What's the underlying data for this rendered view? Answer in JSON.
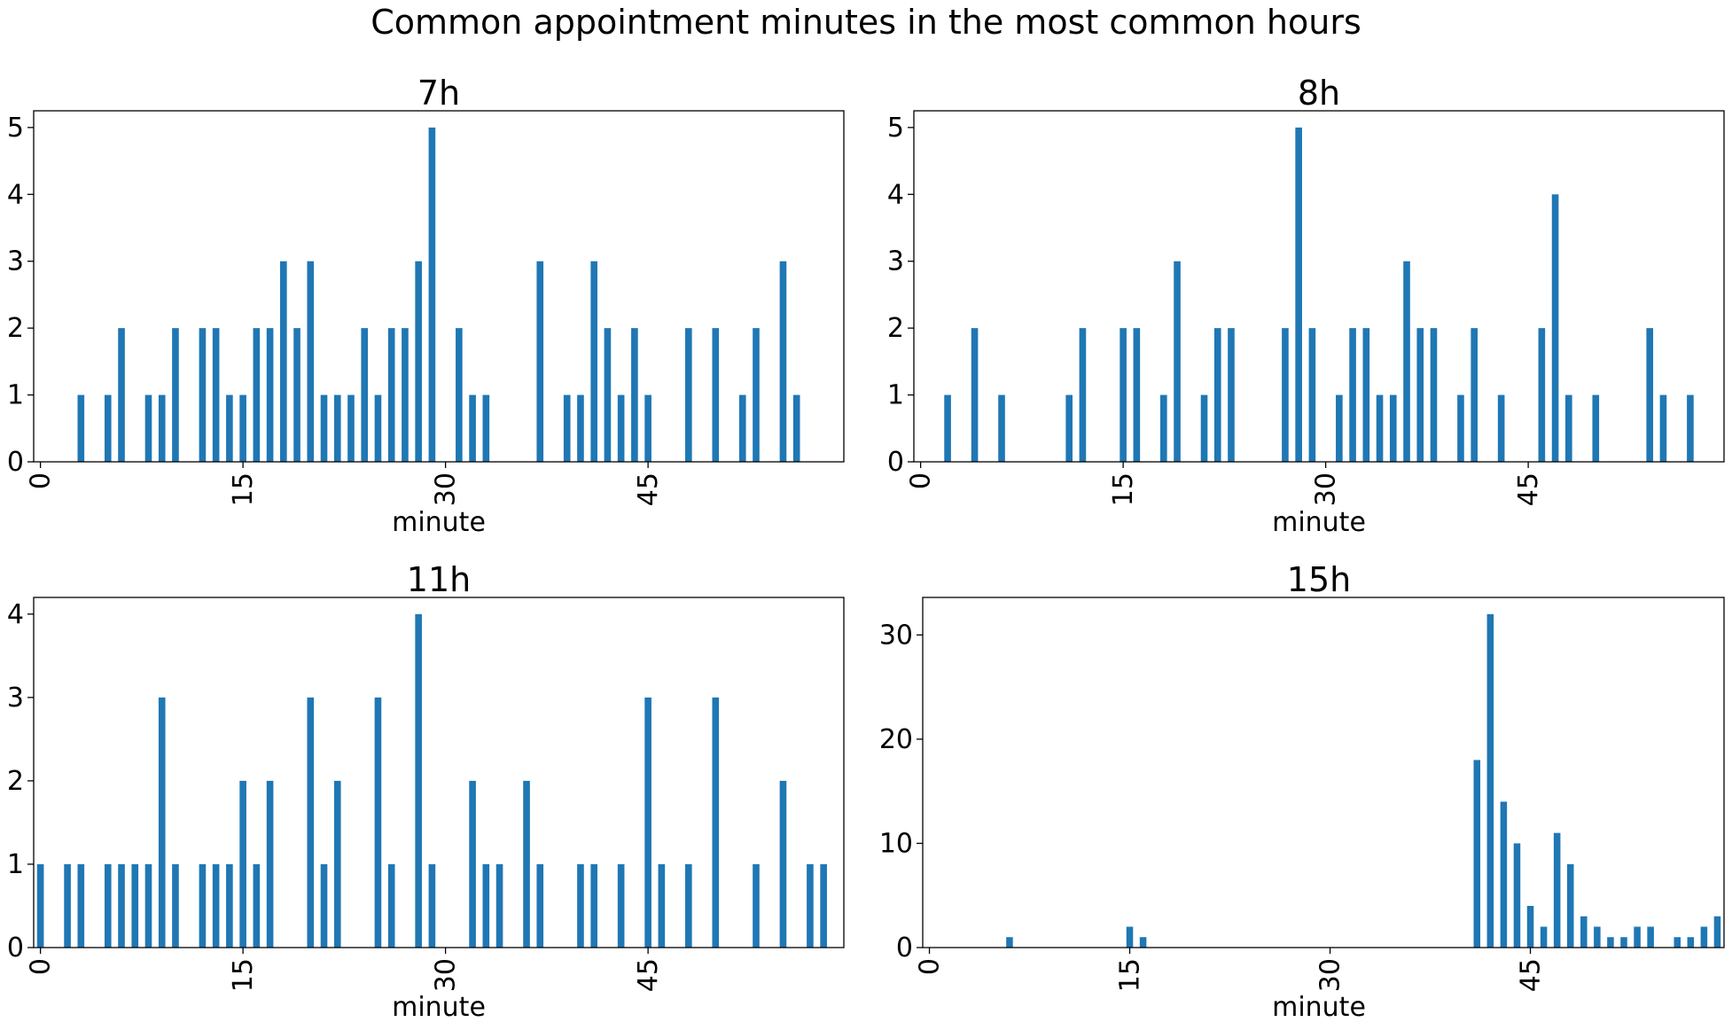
{
  "figure": {
    "title": "Common appointment minutes in the most common hours"
  },
  "colors": {
    "bar": "#1f77b4",
    "axis": "#000000",
    "background": "#ffffff"
  },
  "chart_data": [
    {
      "type": "bar",
      "title": "7h",
      "xlabel": "minute",
      "ylabel": "",
      "x_ticks": [
        0,
        15,
        30,
        45
      ],
      "y_ticks": [
        0,
        1,
        2,
        3,
        4,
        5
      ],
      "ylim": [
        0,
        5.25
      ],
      "xlim": [
        -0.5,
        59.5
      ],
      "grid": false,
      "minutes": [
        3,
        5,
        6,
        8,
        9,
        10,
        12,
        13,
        14,
        15,
        16,
        17,
        18,
        19,
        20,
        21,
        22,
        23,
        24,
        25,
        26,
        27,
        28,
        29,
        31,
        32,
        33,
        37,
        39,
        40,
        41,
        42,
        43,
        44,
        45,
        48,
        50,
        52,
        53,
        55,
        56
      ],
      "values": [
        1,
        1,
        2,
        1,
        1,
        2,
        2,
        2,
        1,
        1,
        2,
        2,
        3,
        2,
        3,
        1,
        1,
        1,
        2,
        1,
        2,
        2,
        3,
        5,
        2,
        1,
        1,
        3,
        1,
        1,
        3,
        2,
        1,
        2,
        1,
        2,
        2,
        1,
        2,
        3,
        1
      ]
    },
    {
      "type": "bar",
      "title": "8h",
      "xlabel": "minute",
      "ylabel": "",
      "x_ticks": [
        0,
        15,
        30,
        45
      ],
      "y_ticks": [
        0,
        1,
        2,
        3,
        4,
        5
      ],
      "ylim": [
        0,
        5.25
      ],
      "xlim": [
        -0.5,
        59.5
      ],
      "grid": false,
      "minutes": [
        2,
        4,
        6,
        11,
        12,
        15,
        16,
        18,
        19,
        21,
        22,
        23,
        27,
        28,
        29,
        31,
        32,
        33,
        34,
        35,
        36,
        37,
        38,
        40,
        41,
        43,
        46,
        47,
        48,
        50,
        54,
        55,
        57
      ],
      "values": [
        1,
        2,
        1,
        1,
        2,
        2,
        2,
        1,
        3,
        1,
        2,
        2,
        2,
        5,
        2,
        1,
        2,
        2,
        1,
        1,
        3,
        2,
        2,
        1,
        2,
        1,
        2,
        4,
        1,
        1,
        2,
        1,
        1
      ]
    },
    {
      "type": "bar",
      "title": "11h",
      "xlabel": "minute",
      "ylabel": "",
      "x_ticks": [
        0,
        15,
        30,
        45
      ],
      "y_ticks": [
        0,
        1,
        2,
        3,
        4
      ],
      "ylim": [
        0,
        4.2
      ],
      "xlim": [
        -0.5,
        59.5
      ],
      "grid": false,
      "minutes": [
        0,
        2,
        3,
        5,
        6,
        7,
        8,
        9,
        10,
        12,
        13,
        14,
        15,
        16,
        17,
        20,
        21,
        22,
        25,
        26,
        28,
        29,
        32,
        33,
        34,
        36,
        37,
        40,
        41,
        43,
        45,
        46,
        48,
        50,
        53,
        55,
        57,
        58
      ],
      "values": [
        1,
        1,
        1,
        1,
        1,
        1,
        1,
        3,
        1,
        1,
        1,
        1,
        2,
        1,
        2,
        3,
        1,
        2,
        3,
        1,
        4,
        1,
        2,
        1,
        1,
        2,
        1,
        1,
        1,
        1,
        3,
        1,
        1,
        3,
        1,
        2,
        1,
        1
      ]
    },
    {
      "type": "bar",
      "title": "15h",
      "xlabel": "minute",
      "ylabel": "",
      "x_ticks": [
        0,
        15,
        30,
        45
      ],
      "y_ticks": [
        0,
        10,
        20,
        30
      ],
      "ylim": [
        0,
        33.6
      ],
      "xlim": [
        -0.5,
        59.5
      ],
      "grid": false,
      "minutes": [
        6,
        15,
        16,
        41,
        42,
        43,
        44,
        45,
        46,
        47,
        48,
        49,
        50,
        51,
        52,
        53,
        54,
        56,
        57,
        58,
        59
      ],
      "values": [
        1,
        2,
        1,
        18,
        32,
        14,
        10,
        4,
        2,
        11,
        8,
        3,
        2,
        1,
        1,
        2,
        2,
        1,
        1,
        2,
        3
      ]
    }
  ]
}
